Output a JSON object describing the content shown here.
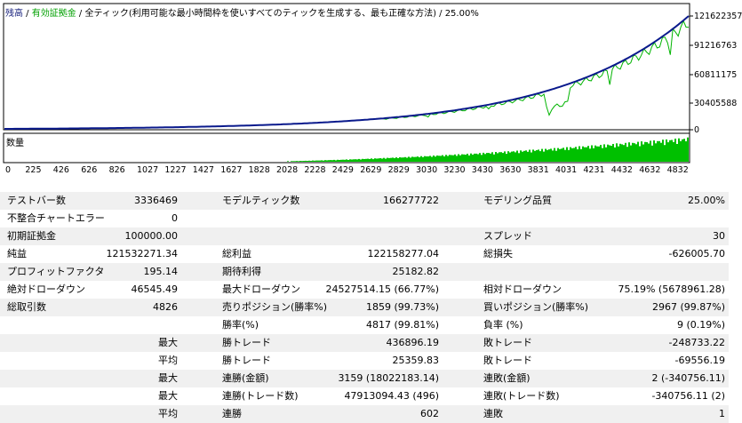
{
  "legend": {
    "balance": "残高",
    "sep1": " / ",
    "margin": "有効証拠金",
    "sep2": " / ",
    "rest": "全ティック(利用可能な最小時間枠を使いすべてのティックを生成する、最も正確な方法) / 25.00%"
  },
  "chart": {
    "y_ticks": [
      "121622357",
      "91216763",
      "60811175",
      "30405588",
      "0"
    ],
    "x_ticks": [
      "0",
      "225",
      "426",
      "626",
      "826",
      "1027",
      "1227",
      "1427",
      "1627",
      "1828",
      "2028",
      "2228",
      "2429",
      "2629",
      "2829",
      "3030",
      "3230",
      "3430",
      "3630",
      "3831",
      "4031",
      "4231",
      "4432",
      "4632",
      "4832"
    ],
    "volume_label": "数量",
    "colors": {
      "balance": "#0a1a8c",
      "equity": "#00b400",
      "volume": "#00c000"
    }
  },
  "stats": {
    "r0": {
      "a_label": "テストバー数",
      "a_value": "3336469",
      "b_label": "モデルティック数",
      "b_value": "166277722",
      "c_label": "モデリング品質",
      "c_value": "25.00%"
    },
    "r1": {
      "a_label": "不整合チャートエラー",
      "a_value": "0"
    },
    "r2": {
      "a_label": "初期証拠金",
      "a_value": "100000.00",
      "c_label": "スプレッド",
      "c_value": "30"
    },
    "r3": {
      "a_label": "純益",
      "a_value": "121532271.34",
      "b_label": "総利益",
      "b_value": "122158277.04",
      "c_label": "総損失",
      "c_value": "-626005.70"
    },
    "r4": {
      "a_label": "プロフィットファクタ",
      "a_value": "195.14",
      "b_label": "期待利得",
      "b_value": "25182.82"
    },
    "r5": {
      "a_label": "絶対ドローダウン",
      "a_value": "46545.49",
      "b_label": "最大ドローダウン",
      "b_value": "24527514.15 (66.77%)",
      "c_label": "相対ドローダウン",
      "c_value": "75.19% (5678961.28)"
    },
    "r6": {
      "a_label": "総取引数",
      "a_value": "4826",
      "b_label": "売りポジション(勝率%)",
      "b_value": "1859 (99.73%)",
      "c_label": "買いポジション(勝率%)",
      "c_value": "2967 (99.87%)"
    },
    "r7": {
      "b_label": "勝率(%)",
      "b_value": "4817 (99.81%)",
      "c_label": "負率 (%)",
      "c_value": "9 (0.19%)"
    },
    "r8": {
      "a_value": "最大",
      "b_label": "勝トレード",
      "b_value": "436896.19",
      "c_label": "敗トレード",
      "c_value": "-248733.22"
    },
    "r9": {
      "a_value": "平均",
      "b_label": "勝トレード",
      "b_value": "25359.83",
      "c_label": "敗トレード",
      "c_value": "-69556.19"
    },
    "r10": {
      "a_value": "最大",
      "b_label": "連勝(金額)",
      "b_value": "3159 (18022183.14)",
      "c_label": "連敗(金額)",
      "c_value": "2 (-340756.11)"
    },
    "r11": {
      "a_value": "最大",
      "b_label": "連勝(トレード数)",
      "b_value": "47913094.43 (496)",
      "c_label": "連敗(トレード数)",
      "c_value": "-340756.11 (2)"
    },
    "r12": {
      "a_value": "平均",
      "b_label": "連勝",
      "b_value": "602",
      "c_label": "連敗",
      "c_value": "1"
    }
  }
}
